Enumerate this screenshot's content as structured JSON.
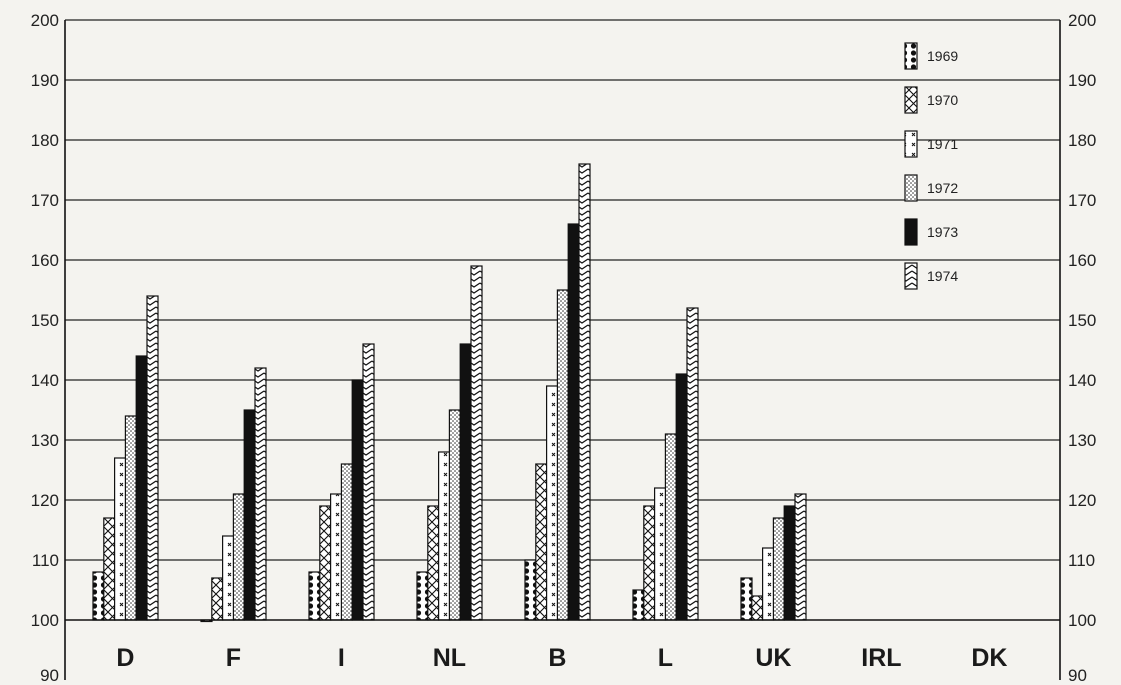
{
  "chart_data": {
    "type": "bar",
    "categories": [
      "D",
      "F",
      "I",
      "NL",
      "B",
      "L",
      "UK",
      "IRL",
      "DK"
    ],
    "series": [
      {
        "name": "1969",
        "values": [
          108,
          100,
          108,
          108,
          110,
          105,
          107,
          null,
          null
        ]
      },
      {
        "name": "1970",
        "values": [
          117,
          107,
          119,
          119,
          126,
          119,
          104,
          null,
          null
        ]
      },
      {
        "name": "1971",
        "values": [
          127,
          114,
          121,
          128,
          139,
          122,
          112,
          null,
          null
        ]
      },
      {
        "name": "1972",
        "values": [
          134,
          121,
          126,
          135,
          155,
          131,
          117,
          null,
          null
        ]
      },
      {
        "name": "1973",
        "values": [
          144,
          135,
          140,
          146,
          166,
          141,
          119,
          null,
          null
        ]
      },
      {
        "name": "1974",
        "values": [
          154,
          142,
          146,
          159,
          176,
          152,
          121,
          null,
          null
        ]
      }
    ],
    "ylim": [
      90,
      200
    ],
    "yticks": [
      90,
      100,
      110,
      120,
      130,
      140,
      150,
      160,
      170,
      180,
      190,
      200
    ],
    "baseline": 100,
    "grid": true,
    "legend": "top-right",
    "colors": {
      "background": "#f4f3ef",
      "ink": "#111111",
      "paper": "#ffffff"
    },
    "patterns": [
      "dots",
      "crosshatch",
      "crosses",
      "stipple",
      "solid",
      "chevrons"
    ]
  }
}
